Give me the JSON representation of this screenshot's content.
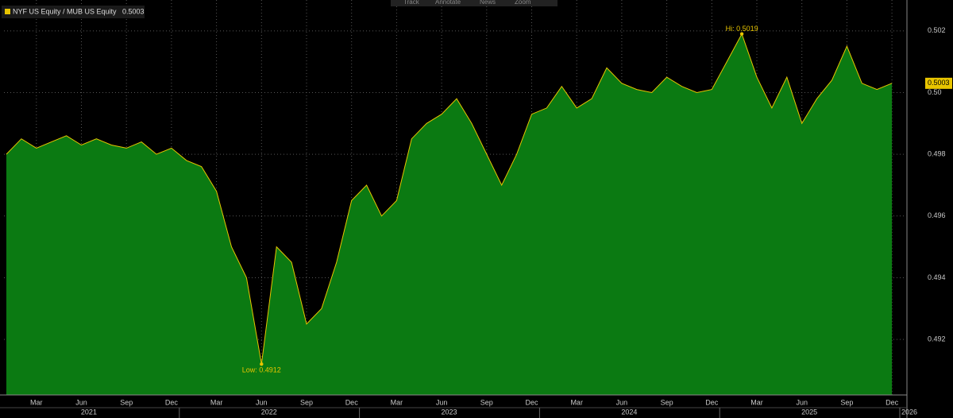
{
  "toolbar": [
    "Track",
    "Annotate",
    "News",
    "Zoom"
  ],
  "chart_data": {
    "type": "area",
    "x": [
      "2021-01",
      "2021-02",
      "2021-03",
      "2021-04",
      "2021-05",
      "2021-06",
      "2021-07",
      "2021-08",
      "2021-09",
      "2021-10",
      "2021-11",
      "2021-12",
      "2022-01",
      "2022-02",
      "2022-03",
      "2022-04",
      "2022-05",
      "2022-06",
      "2022-07",
      "2022-08",
      "2022-09",
      "2022-10",
      "2022-11",
      "2022-12",
      "2023-01",
      "2023-02",
      "2023-03",
      "2023-04",
      "2023-05",
      "2023-06",
      "2023-07",
      "2023-08",
      "2023-09",
      "2023-10",
      "2023-11",
      "2023-12",
      "2024-01",
      "2024-02",
      "2024-03",
      "2024-04",
      "2024-05",
      "2024-06",
      "2024-07",
      "2024-08",
      "2024-09",
      "2024-10",
      "2024-11",
      "2024-12",
      "2025-01",
      "2025-02",
      "2025-03",
      "2025-04",
      "2025-05",
      "2025-06",
      "2025-07",
      "2025-08",
      "2025-09",
      "2025-10",
      "2025-11",
      "2025-12"
    ],
    "series": [
      {
        "name": "NYF US Equity / MUB US Equity",
        "color": "#e8c500",
        "fill": "#0b7a12",
        "values": [
          0.498,
          0.4985,
          0.4982,
          0.4984,
          0.4986,
          0.4983,
          0.4985,
          0.4983,
          0.4982,
          0.4984,
          0.498,
          0.4982,
          0.4978,
          0.4976,
          0.4968,
          0.495,
          0.494,
          0.4912,
          0.495,
          0.4945,
          0.4925,
          0.493,
          0.4945,
          0.4965,
          0.497,
          0.496,
          0.4965,
          0.4985,
          0.499,
          0.4993,
          0.4998,
          0.499,
          0.498,
          0.497,
          0.498,
          0.4993,
          0.4995,
          0.5002,
          0.4995,
          0.4998,
          0.5008,
          0.5003,
          0.5001,
          0.5,
          0.5005,
          0.5002,
          0.5,
          0.5001,
          0.501,
          0.5019,
          0.5005,
          0.4995,
          0.5005,
          0.499,
          0.4998,
          0.5004,
          0.5015,
          0.5003,
          0.5001,
          0.5003
        ]
      }
    ],
    "annotations": [
      {
        "label": "Low: 0.4912",
        "x": "2022-06",
        "value": 0.4912
      },
      {
        "label": "Hi: 0.5019",
        "x": "2025-02",
        "value": 0.5019
      }
    ],
    "ylim": [
      0.4902,
      0.503
    ],
    "yticks": [
      0.492,
      0.494,
      0.496,
      0.498,
      {
        "value": 0.5,
        "label": "0.50"
      },
      0.502
    ],
    "month_ticks": [
      {
        "value": "2021-03",
        "label": "Mar"
      },
      {
        "value": "2021-06",
        "label": "Jun"
      },
      {
        "value": "2021-09",
        "label": "Sep"
      },
      {
        "value": "2021-12",
        "label": "Dec"
      },
      {
        "value": "2022-03",
        "label": "Mar"
      },
      {
        "value": "2022-06",
        "label": "Jun"
      },
      {
        "value": "2022-09",
        "label": "Sep"
      },
      {
        "value": "2022-12",
        "label": "Dec"
      },
      {
        "value": "2023-03",
        "label": "Mar"
      },
      {
        "value": "2023-06",
        "label": "Jun"
      },
      {
        "value": "2023-09",
        "label": "Sep"
      },
      {
        "value": "2023-12",
        "label": "Dec"
      },
      {
        "value": "2024-03",
        "label": "Mar"
      },
      {
        "value": "2024-06",
        "label": "Jun"
      },
      {
        "value": "2024-09",
        "label": "Sep"
      },
      {
        "value": "2024-12",
        "label": "Dec"
      },
      {
        "value": "2025-03",
        "label": "Mar"
      },
      {
        "value": "2025-06",
        "label": "Jun"
      },
      {
        "value": "2025-09",
        "label": "Sep"
      },
      {
        "value": "2025-12",
        "label": "Dec"
      }
    ],
    "years": [
      2021,
      2022,
      2023,
      2024,
      2025,
      2026
    ],
    "grid": true
  }
}
